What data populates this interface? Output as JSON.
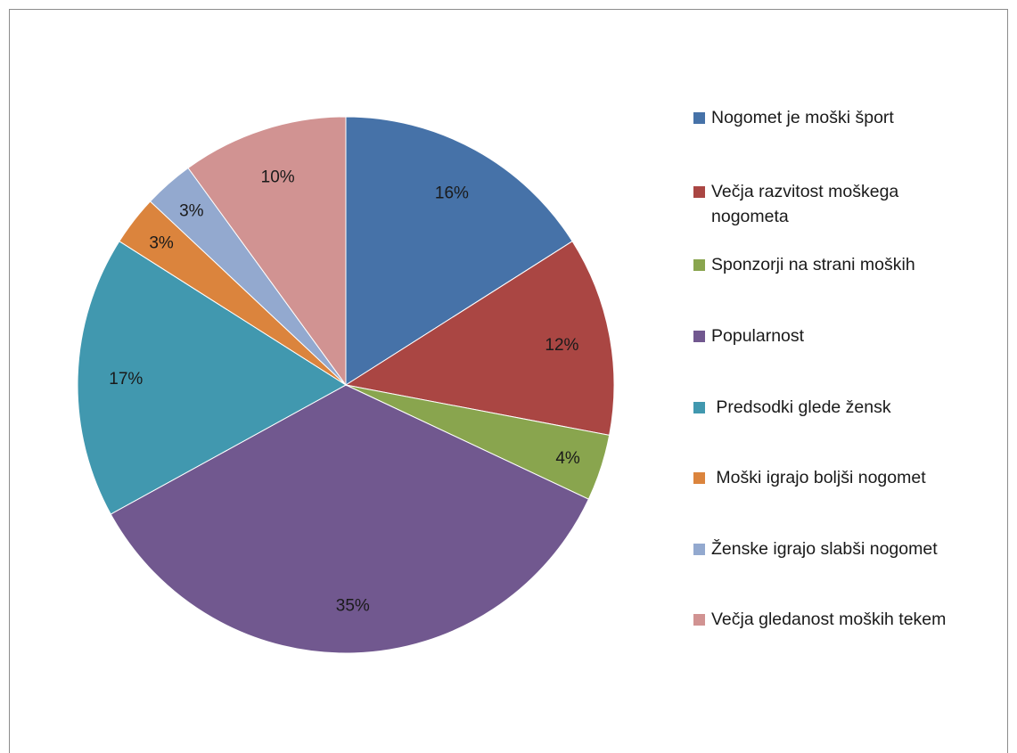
{
  "chart_data": {
    "type": "pie",
    "title": "",
    "legend_position": "right",
    "slices": [
      {
        "name": "Nogomet je moški šport",
        "value": 16,
        "label": "16%",
        "color": "#4672A8"
      },
      {
        "name": "Večja razvitost moškega nogometa",
        "value": 12,
        "label": "12%",
        "color": "#AA4643"
      },
      {
        "name": "Sponzorji na strani moških",
        "value": 4,
        "label": "4%",
        "color": "#89A54E"
      },
      {
        "name": "Popularnost",
        "value": 35,
        "label": "35%",
        "color": "#71588F"
      },
      {
        "name": " Predsodki glede žensk",
        "value": 17,
        "label": "17%",
        "color": "#4198AF"
      },
      {
        "name": " Moški igrajo boljši nogomet",
        "value": 3,
        "label": "3%",
        "color": "#DB843D"
      },
      {
        "name": "Ženske igrajo slabši nogomet",
        "value": 3,
        "label": "3%",
        "color": "#93A9CF"
      },
      {
        "name": "Večja gledanost moških tekem",
        "value": 10,
        "label": "10%",
        "color": "#D19392"
      }
    ]
  }
}
